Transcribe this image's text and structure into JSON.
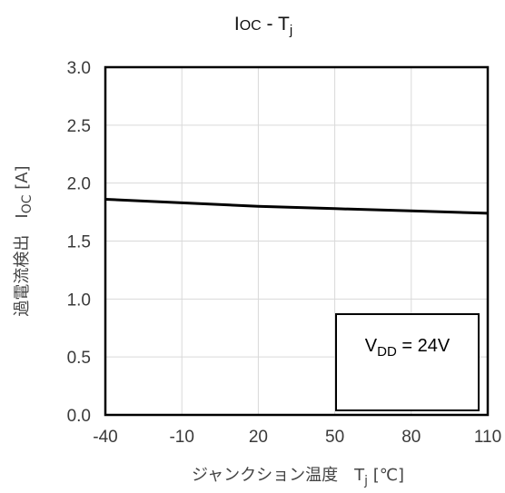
{
  "chart_data": {
    "type": "line",
    "title": {
      "main": "I",
      "sub": "OC",
      "sep": " - T",
      "sub2": "j"
    },
    "xlabel": {
      "main": "ジャンクション温度　T",
      "sub": "j",
      "unit": " [℃]"
    },
    "ylabel": {
      "main": "過電流検出　I",
      "sub": "OC",
      "unit": " [A]"
    },
    "x_ticks": [
      "-40",
      "-10",
      "20",
      "50",
      "80",
      "110"
    ],
    "y_ticks": [
      "0.0",
      "0.5",
      "1.0",
      "1.5",
      "2.0",
      "2.5",
      "3.0"
    ],
    "xlim": [
      -40,
      110
    ],
    "ylim": [
      0,
      3
    ],
    "grid": true,
    "series": [
      {
        "x": [
          -40,
          -10,
          20,
          50,
          80,
          110
        ],
        "y": [
          1.86,
          1.83,
          1.8,
          1.78,
          1.76,
          1.74
        ]
      }
    ],
    "annotation": {
      "main": "V",
      "sub": "DD",
      "rest": " = 24V"
    },
    "colors": {
      "line": "#000000",
      "grid": "#d9d9d9"
    }
  }
}
